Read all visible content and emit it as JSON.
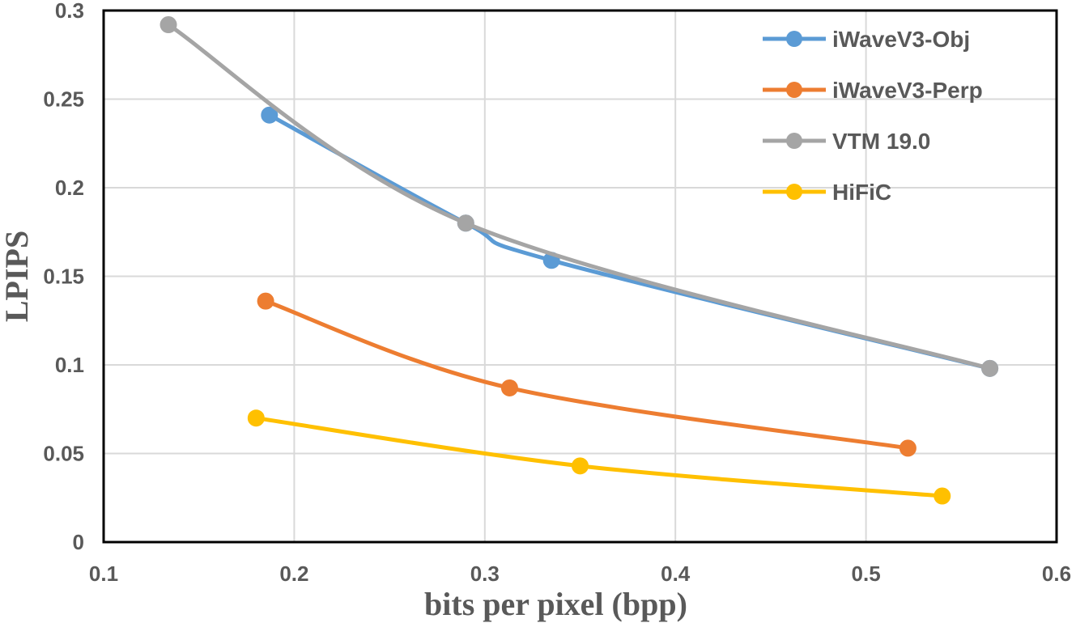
{
  "chart_data": {
    "type": "line",
    "title": "",
    "xlabel": "bits per pixel (bpp)",
    "ylabel": "LPIPS",
    "xlim": [
      0.1,
      0.6
    ],
    "ylim": [
      0,
      0.3
    ],
    "xticks": [
      0.1,
      0.2,
      0.3,
      0.4,
      0.5,
      0.6
    ],
    "yticks": [
      0,
      0.05,
      0.1,
      0.15,
      0.2,
      0.25,
      0.3
    ],
    "xtick_labels": [
      "0.1",
      "0.2",
      "0.3",
      "0.4",
      "0.5",
      "0.6"
    ],
    "ytick_labels": [
      "0",
      "0.05",
      "0.1",
      "0.15",
      "0.2",
      "0.25",
      "0.3"
    ],
    "grid": true,
    "legend_position": "top-right",
    "series": [
      {
        "name": "iWaveV3-Obj",
        "color": "#5B9BD5",
        "x": [
          0.187,
          0.29,
          0.335,
          0.565
        ],
        "y": [
          0.241,
          0.18,
          0.159,
          0.098
        ]
      },
      {
        "name": "iWaveV3-Perp",
        "color": "#ED7D31",
        "x": [
          0.185,
          0.313,
          0.522
        ],
        "y": [
          0.136,
          0.087,
          0.053
        ]
      },
      {
        "name": "VTM 19.0",
        "color": "#A5A5A5",
        "x": [
          0.134,
          0.29,
          0.565
        ],
        "y": [
          0.292,
          0.18,
          0.098
        ]
      },
      {
        "name": "HiFiC",
        "color": "#FFC000",
        "x": [
          0.18,
          0.35,
          0.54
        ],
        "y": [
          0.07,
          0.043,
          0.026
        ]
      }
    ]
  }
}
